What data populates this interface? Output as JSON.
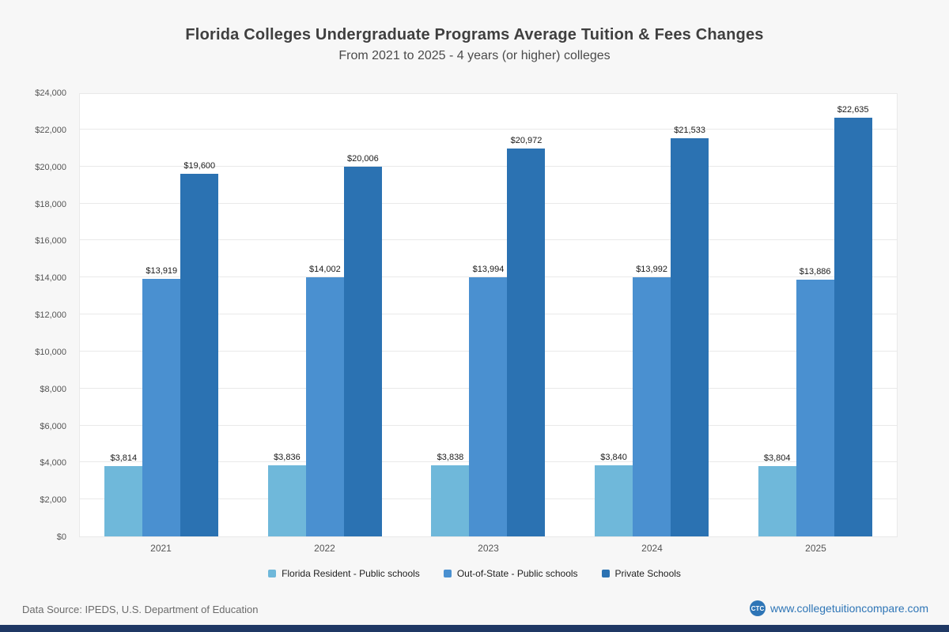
{
  "header": {
    "title": "Florida Colleges Undergraduate Programs Average Tuition & Fees Changes",
    "subtitle": "From 2021 to 2025 - 4 years (or higher) colleges"
  },
  "chart_data": {
    "type": "bar",
    "title": "Florida Colleges Undergraduate Programs Average Tuition & Fees Changes",
    "subtitle": "From 2021 to 2025 - 4 years (or higher) colleges",
    "categories": [
      "2021",
      "2022",
      "2023",
      "2024",
      "2025"
    ],
    "series": [
      {
        "name": "Florida Resident - Public schools",
        "color": "#6fb8da",
        "values": [
          3814,
          3836,
          3838,
          3840,
          3804
        ]
      },
      {
        "name": "Out-of-State - Public schools",
        "color": "#4a90d0",
        "values": [
          13919,
          14002,
          13994,
          13992,
          13886
        ]
      },
      {
        "name": "Private Schools",
        "color": "#2b72b2",
        "values": [
          19600,
          20006,
          20972,
          21533,
          22635
        ]
      }
    ],
    "ylim": [
      0,
      24000
    ],
    "ytick_step": 2000,
    "ytick_labels": [
      "$0",
      "$2,000",
      "$4,000",
      "$6,000",
      "$8,000",
      "$10,000",
      "$12,000",
      "$14,000",
      "$16,000",
      "$18,000",
      "$20,000",
      "$22,000",
      "$24,000"
    ],
    "grid": true,
    "legend_position": "bottom",
    "value_labels": [
      "$3,814",
      "$13,919",
      "$19,600",
      "$3,836",
      "$14,002",
      "$20,006",
      "$3,838",
      "$13,994",
      "$20,972",
      "$3,840",
      "$13,992",
      "$21,533",
      "$3,804",
      "$13,886",
      "$22,635"
    ]
  },
  "footer": {
    "source": "Data Source: IPEDS, U.S. Department of Education",
    "logo_text": "CTC",
    "website": "www.collegetuitioncompare.com"
  },
  "colors": {
    "series1": "#6fb8da",
    "series2": "#4a90d0",
    "series3": "#2b72b2",
    "accent_link": "#2e75b6",
    "bottom_bar": "#1f3864"
  }
}
